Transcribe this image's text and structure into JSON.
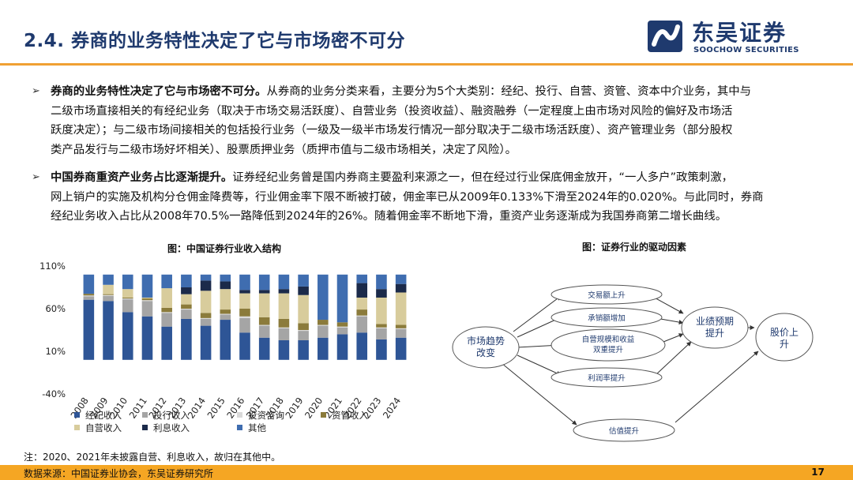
{
  "header": {
    "title": "2.4. 券商的业务特性决定了它与市场密不可分",
    "logo_name": "东吴证券",
    "logo_en": "SOOCHOW SECURITIES",
    "accent": "#f0a033",
    "brand": "#1f3a6e"
  },
  "bullets": [
    {
      "marker": "➢",
      "bold": "券商的业务特性决定了它与市场密不可分。",
      "lines": [
        "从券商的业务分类来看，主要分为5个大类别：经纪、投行、自营、资管、资本中介业务，其中与",
        "二级市场直接相关的有经纪业务（取决于市场交易活跃度）、自营业务（投资收益）、融资融券（一定程度上由市场对风险的偏好及市场活",
        "跃度决定）；与二级市场间接相关的包括投行业务（一级及一级半市场发行情况一部分取决于二级市场活跃度）、资产管理业务（部分股权",
        "类产品发行与二级市场好坏相关）、股票质押业务（质押市值与二级市场相关，决定了风险）。"
      ]
    },
    {
      "marker": "➢",
      "bold": "中国券商重资产业务占比逐渐提升。",
      "lines": [
        "证券经纪业务曾是国内券商主要盈利来源之一，但在经过行业保底佣金放开，“一人多户”政策刺激，",
        "网上销户的实施及机构分仓佣金降费等，行业佣金率下限不断被打破，佣金率已从2009年0.133%下滑至2024年的0.020%。与此同时，券商",
        "经纪业务收入占比从2008年70.5%一路降低到2024年的26%。随着佣金率不断地下滑，重资产业务逐渐成为我国券商第二增长曲线。"
      ]
    }
  ],
  "chart_title": "图：中国证券行业收入结构",
  "diagram_title": "图：证券行业的驱动因素",
  "chart_data": {
    "type": "bar",
    "stacked": true,
    "categories": [
      "2008",
      "2009",
      "2010",
      "2011",
      "2012",
      "2013",
      "2014",
      "2015",
      "2016",
      "2017",
      "2018",
      "2019",
      "2020",
      "2021",
      "2022",
      "2023",
      "2024"
    ],
    "y_ticks": [
      "110%",
      "60%",
      "10%",
      "-40%"
    ],
    "ylim": [
      -40,
      110
    ],
    "series": [
      {
        "name": "经纪收入",
        "color": "#2e5596",
        "values": [
          70.5,
          69,
          56,
          51,
          39,
          48,
          40,
          47,
          32,
          26,
          23,
          23,
          26,
          30,
          32,
          24,
          26
        ]
      },
      {
        "name": "投行收入",
        "color": "#a5a5a5",
        "values": [
          4,
          6,
          15,
          18,
          16,
          11,
          8,
          6,
          17,
          14,
          14,
          11,
          14,
          8,
          19,
          13,
          10
        ]
      },
      {
        "name": "投资咨询",
        "color": "#d9d9d9",
        "values": [
          1,
          1,
          1,
          1,
          1,
          1,
          1,
          1,
          2,
          1,
          1,
          1,
          1,
          1,
          1,
          1,
          1
        ]
      },
      {
        "name": "资管收入",
        "color": "#8b7b3b",
        "values": [
          2,
          1,
          1,
          2,
          5,
          5,
          6,
          5,
          9,
          9,
          10,
          8,
          6,
          5,
          7,
          4,
          4
        ]
      },
      {
        "name": "自营收入",
        "color": "#d8cc9c",
        "values": [
          0,
          11,
          10,
          1,
          23,
          12,
          26,
          24,
          18,
          28,
          30,
          33,
          0,
          0,
          14,
          31,
          38
        ]
      },
      {
        "name": "利息收入",
        "color": "#1b2a4a",
        "values": [
          0,
          0,
          0,
          0,
          0,
          8,
          12,
          9,
          4,
          4,
          5,
          10,
          0,
          0,
          17,
          10,
          10
        ]
      },
      {
        "name": "其他",
        "color": "#3f6db0",
        "values": [
          22.5,
          12,
          17,
          27,
          16,
          15,
          7,
          8,
          18,
          18,
          17,
          14,
          53,
          56,
          10,
          17,
          11
        ]
      }
    ],
    "legend": "bottom",
    "grid": false
  },
  "diagram": {
    "source": "市场趋势改变",
    "branches": [
      "交易额上升",
      "承销额增加",
      "自营规模和收益双重提升",
      "利润率提升",
      "估值提升"
    ],
    "middle": "业绩预期提升",
    "target": "股价上升"
  },
  "note": "注：2020、2021年未披露自营、利息收入，故归在其他中。",
  "footer": {
    "source": "数据来源：中国证券业协会，东吴证券研究所",
    "page": "17"
  }
}
